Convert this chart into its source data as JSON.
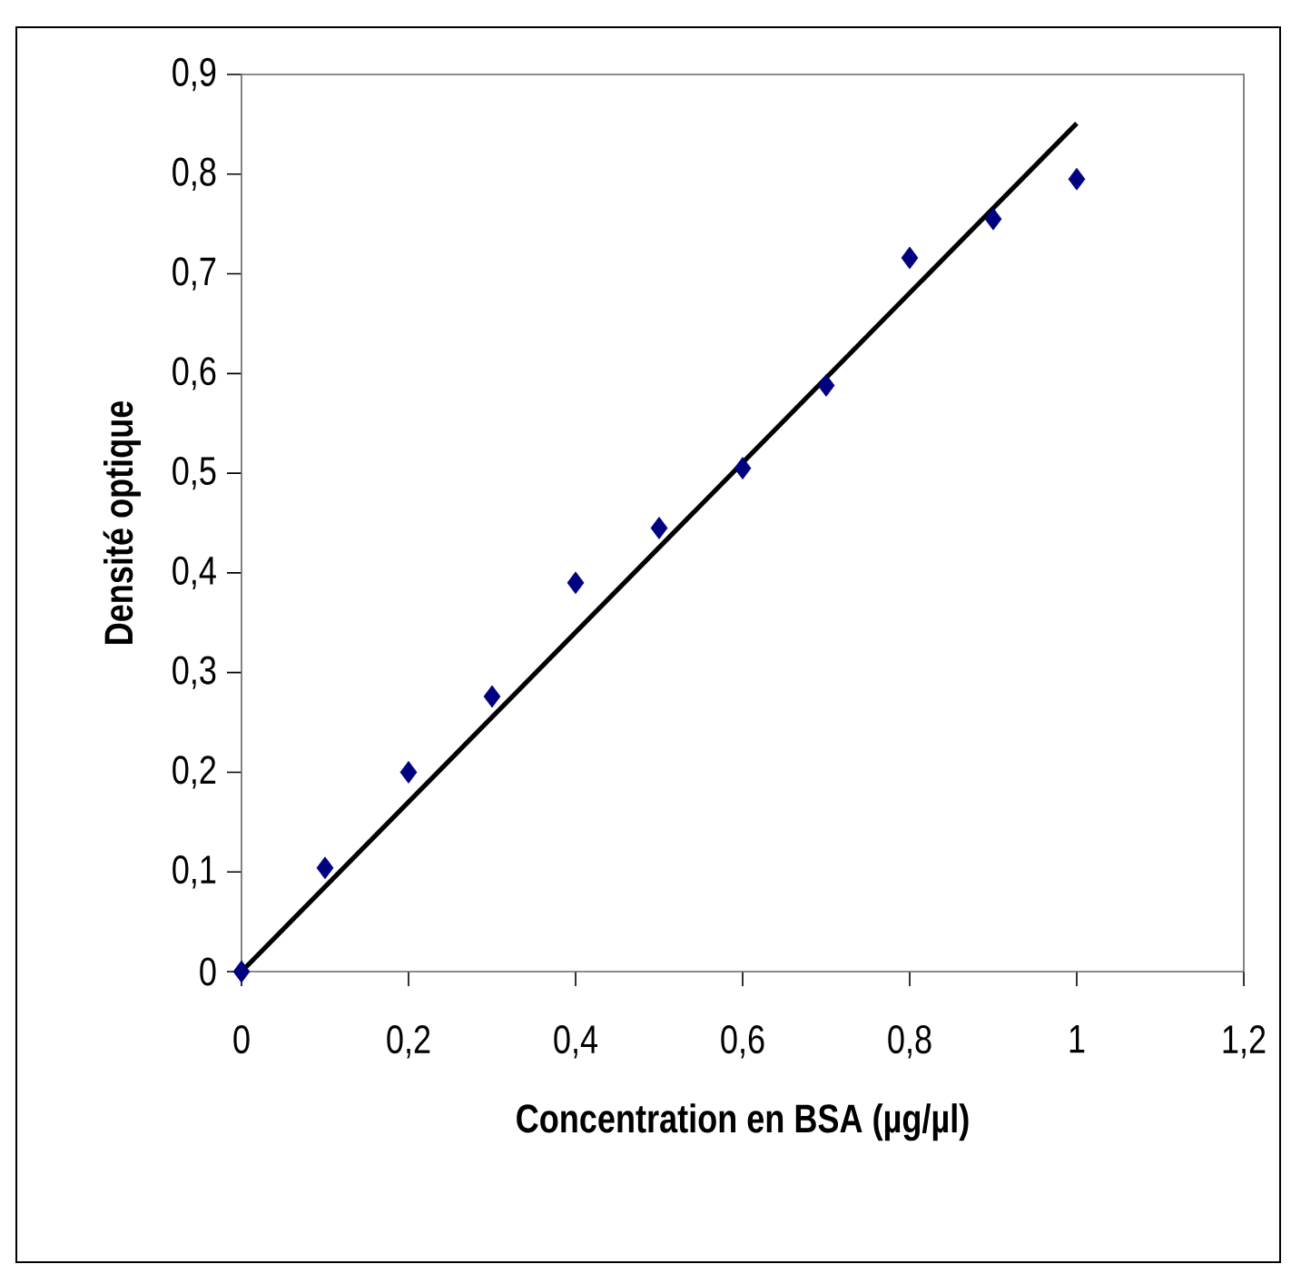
{
  "chart_data": {
    "type": "scatter",
    "xlabel": "Concentration en BSA (µg/µl)",
    "ylabel": "Densité optique",
    "x": [
      0,
      0.1,
      0.2,
      0.3,
      0.4,
      0.5,
      0.6,
      0.7,
      0.8,
      0.9,
      1.0
    ],
    "series": [
      {
        "color": "#000080",
        "values": [
          0,
          0.104,
          0.2,
          0.276,
          0.39,
          0.445,
          0.505,
          0.588,
          0.716,
          0.755,
          0.795
        ]
      },
      {
        "type": "line",
        "color": "#000000",
        "marker": "none",
        "x": [
          0,
          1.0
        ],
        "values": [
          0,
          0.851
        ]
      }
    ],
    "marker": "diamond",
    "xlim": [
      0,
      1.2
    ],
    "ylim": [
      0,
      0.9
    ],
    "xticks": [
      0,
      {
        "value": 0.2,
        "label": "0,2"
      },
      {
        "value": 0.4,
        "label": "0,4"
      },
      {
        "value": 0.6,
        "label": "0,6"
      },
      {
        "value": 0.8,
        "label": "0,8"
      },
      1,
      {
        "value": 1.2,
        "label": "1,2"
      }
    ],
    "yticks": [
      0,
      {
        "value": 0.1,
        "label": "0,1"
      },
      {
        "value": 0.2,
        "label": "0,2"
      },
      {
        "value": 0.3,
        "label": "0,3"
      },
      {
        "value": 0.4,
        "label": "0,4"
      },
      {
        "value": 0.5,
        "label": "0,5"
      },
      {
        "value": 0.6,
        "label": "0,6"
      },
      {
        "value": 0.7,
        "label": "0,7"
      },
      {
        "value": 0.8,
        "label": "0,8"
      },
      {
        "value": 0.9,
        "label": "0,9"
      }
    ]
  }
}
